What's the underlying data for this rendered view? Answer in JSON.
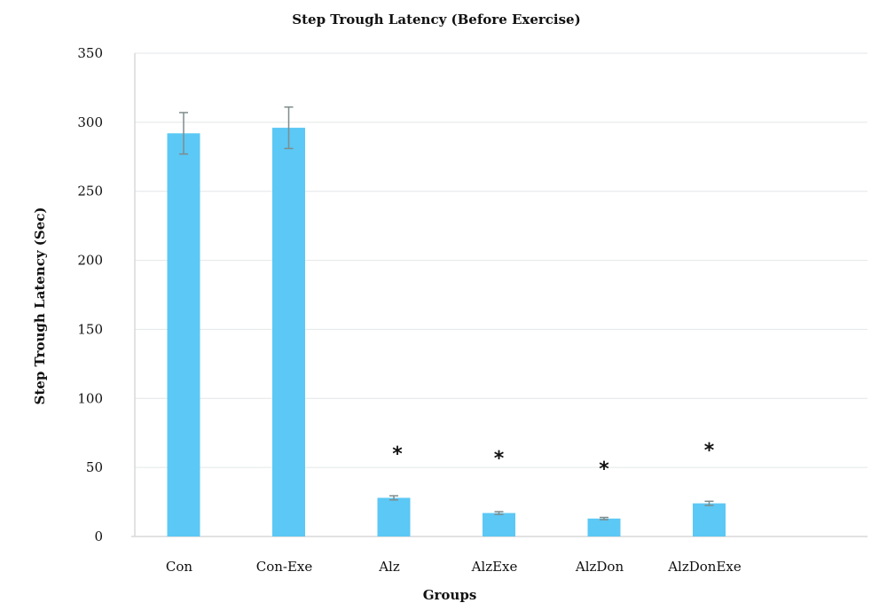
{
  "chart_data": {
    "type": "bar",
    "title": "Step Trough Latency (Before Exercise)",
    "xlabel": "Groups",
    "ylabel": "Step Trough Latency (Sec)",
    "ylim": [
      0,
      350
    ],
    "yticks": [
      0,
      50,
      100,
      150,
      200,
      250,
      300,
      350
    ],
    "grid": true,
    "categories": [
      "Con",
      "Con-Exe",
      "Alz",
      "AlzExe",
      "AlzDon",
      "AlzDonExe"
    ],
    "values": [
      292,
      296,
      28,
      17,
      13,
      24
    ],
    "error": [
      15,
      15,
      1.5,
      1,
      0.8,
      1.5
    ],
    "annotations": [
      "",
      "",
      "*",
      "*",
      "*",
      "*"
    ],
    "colors": {
      "bar": "#5bc8f5",
      "error_bar": "#7f8c8d",
      "grid": "#e3e6e8"
    }
  }
}
